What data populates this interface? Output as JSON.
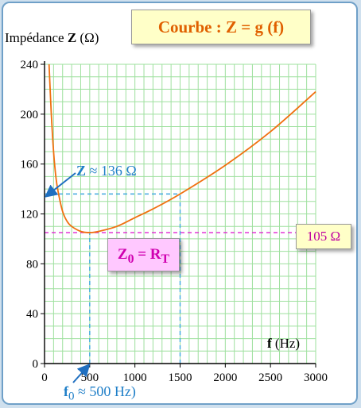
{
  "title": "Courbe : Z = g (f)",
  "y_axis": {
    "text": "Impédance ",
    "symbol": "Z",
    "unit": " (Ω)"
  },
  "x_axis": {
    "symbol": "f",
    "unit": " (Hz)"
  },
  "annotations": {
    "z_read": {
      "symbol": "Z",
      "text": " ≈ 136 Ω"
    },
    "f0_read": {
      "symbol": "f",
      "sub": "0",
      "text": " ≈ 500 Hz)"
    },
    "z0_label": {
      "main": "Z",
      "sub": "0",
      "mid": " = R",
      "sub2": "T"
    },
    "min_value": "105 Ω"
  },
  "colors": {
    "curve": "#f07010",
    "grid": "#9ee09e",
    "guide": "#40a8e0",
    "min_line": "#e020d0",
    "arrow": "#1f6fc0"
  },
  "chart_data": {
    "type": "line",
    "xlim": [
      0,
      3000
    ],
    "ylim": [
      0,
      240
    ],
    "x_ticks": [
      0,
      500,
      1000,
      1500,
      2000,
      2500,
      3000
    ],
    "y_ticks": [
      0,
      40,
      80,
      120,
      160,
      200,
      240
    ],
    "x_tick_labels": [
      "0",
      "500",
      "1000",
      "1500",
      "2000",
      "2500",
      "3000"
    ],
    "y_tick_labels": [
      "0",
      "40",
      "80",
      "120",
      "160",
      "200",
      "240"
    ],
    "grid": true,
    "series": [
      {
        "x": [
          50,
          75,
          100,
          125,
          150,
          200,
          250,
          300,
          400,
          500,
          600,
          800,
          1000,
          1200,
          1500,
          2000,
          2500,
          3000
        ],
        "y": [
          240,
          200,
          170,
          150,
          138,
          122,
          114,
          110,
          106,
          105,
          106,
          110,
          117,
          124,
          136,
          159,
          186,
          218
        ]
      }
    ],
    "reference_lines": [
      {
        "axis": "y",
        "value": 105
      },
      {
        "axis": "y",
        "value": 136
      },
      {
        "axis": "x",
        "value": 500
      },
      {
        "axis": "x",
        "value": 1500
      }
    ]
  }
}
